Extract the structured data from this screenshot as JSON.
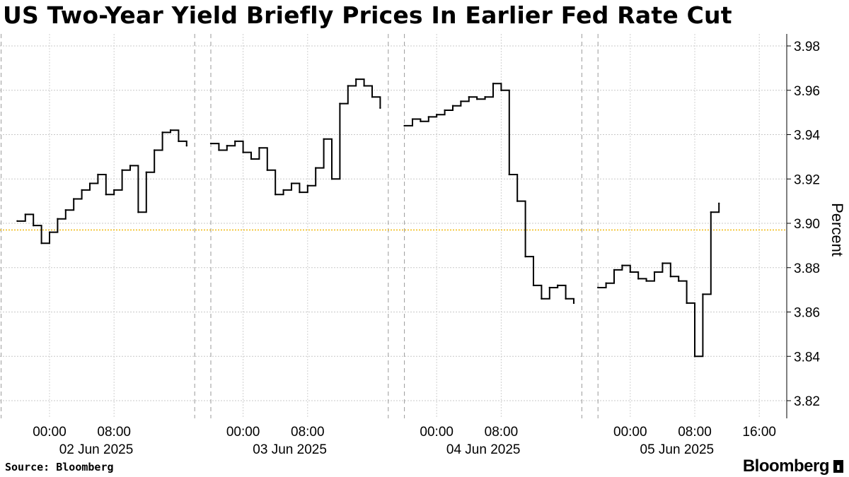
{
  "chart_data": {
    "type": "line",
    "title": "US Two-Year Yield Briefly Prices In Earlier Fed Rate Cut",
    "ylabel": "Percent",
    "ylim": [
      3.81,
      3.985
    ],
    "y_ticks": [
      "3.82",
      "3.84",
      "3.86",
      "3.88",
      "3.90",
      "3.92",
      "3.94",
      "3.96",
      "3.98"
    ],
    "x_ticks": [
      {
        "time": "00:00",
        "date": "02 Jun 2025"
      },
      {
        "time": "08:00",
        "date": ""
      },
      {
        "time": "00:00",
        "date": "03 Jun 2025"
      },
      {
        "time": "08:00",
        "date": ""
      },
      {
        "time": "00:00",
        "date": "04 Jun 2025"
      },
      {
        "time": "08:00",
        "date": ""
      },
      {
        "time": "00:00",
        "date": "05 Jun 2025"
      },
      {
        "time": "08:00",
        "date": ""
      },
      {
        "time": "16:00",
        "date": ""
      }
    ],
    "reference_line": {
      "value": 3.897,
      "color": "#f0b400"
    },
    "grid": true,
    "line_color": "#000000",
    "sessions": [
      {
        "date": "2025-06-01/02",
        "times": [
          "20:00",
          "21:00",
          "22:00",
          "23:00",
          "00:00",
          "01:00",
          "02:00",
          "03:00",
          "04:00",
          "05:00",
          "06:00",
          "07:00",
          "08:00",
          "09:00",
          "10:00",
          "11:00",
          "12:00",
          "13:00",
          "14:00",
          "15:00",
          "16:00",
          "17:00"
        ],
        "values": [
          3.901,
          3.904,
          3.899,
          3.891,
          3.896,
          3.902,
          3.906,
          3.911,
          3.915,
          3.918,
          3.922,
          3.913,
          3.915,
          3.924,
          3.926,
          3.905,
          3.923,
          3.933,
          3.941,
          3.942,
          3.937,
          3.935
        ]
      },
      {
        "date": "2025-06-02/03",
        "times": [
          "20:00",
          "21:00",
          "22:00",
          "23:00",
          "00:00",
          "01:00",
          "02:00",
          "03:00",
          "04:00",
          "05:00",
          "06:00",
          "07:00",
          "08:00",
          "09:00",
          "10:00",
          "11:00",
          "12:00",
          "13:00",
          "14:00",
          "15:00",
          "16:00",
          "17:00"
        ],
        "values": [
          3.936,
          3.933,
          3.935,
          3.937,
          3.932,
          3.929,
          3.934,
          3.924,
          3.913,
          3.915,
          3.918,
          3.914,
          3.917,
          3.925,
          3.938,
          3.92,
          3.954,
          3.962,
          3.965,
          3.962,
          3.957,
          3.952
        ]
      },
      {
        "date": "2025-06-03/04",
        "times": [
          "20:00",
          "21:00",
          "22:00",
          "23:00",
          "00:00",
          "01:00",
          "02:00",
          "03:00",
          "04:00",
          "05:00",
          "06:00",
          "07:00",
          "08:00",
          "09:00",
          "10:00",
          "11:00",
          "12:00",
          "13:00",
          "14:00",
          "15:00",
          "16:00",
          "17:00"
        ],
        "values": [
          3.944,
          3.947,
          3.946,
          3.948,
          3.949,
          3.951,
          3.953,
          3.955,
          3.957,
          3.956,
          3.957,
          3.963,
          3.96,
          3.922,
          3.91,
          3.885,
          3.872,
          3.866,
          3.871,
          3.872,
          3.866,
          3.864
        ]
      },
      {
        "date": "2025-06-04/05",
        "times": [
          "20:00",
          "21:00",
          "22:00",
          "23:00",
          "00:00",
          "01:00",
          "02:00",
          "03:00",
          "04:00",
          "05:00",
          "06:00",
          "07:00",
          "08:00",
          "09:00",
          "10:00",
          "11:00"
        ],
        "values": [
          3.871,
          3.873,
          3.879,
          3.881,
          3.878,
          3.875,
          3.874,
          3.878,
          3.882,
          3.876,
          3.874,
          3.864,
          3.84,
          3.868,
          3.905,
          3.909
        ]
      }
    ]
  },
  "footer": {
    "source": "Source: Bloomberg",
    "brand": "Bloomberg"
  }
}
